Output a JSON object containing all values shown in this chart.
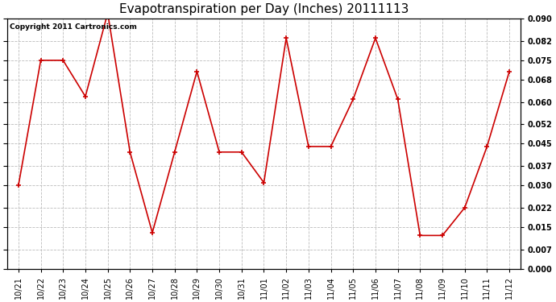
{
  "title": "Evapotranspiration per Day (Inches) 20111113",
  "copyright_text": "Copyright 2011 Cartronics.com",
  "x_labels": [
    "10/21",
    "10/22",
    "10/23",
    "10/24",
    "10/25",
    "10/26",
    "10/27",
    "10/28",
    "10/29",
    "10/30",
    "10/31",
    "11/01",
    "11/02",
    "11/03",
    "11/04",
    "11/05",
    "11/06",
    "11/07",
    "11/08",
    "11/09",
    "11/10",
    "11/11",
    "11/12"
  ],
  "y_values": [
    0.03,
    0.075,
    0.075,
    0.062,
    0.092,
    0.042,
    0.013,
    0.042,
    0.071,
    0.042,
    0.042,
    0.031,
    0.083,
    0.044,
    0.044,
    0.061,
    0.083,
    0.061,
    0.012,
    0.012,
    0.022,
    0.044,
    0.071
  ],
  "line_color": "#cc0000",
  "marker": "+",
  "marker_size": 5,
  "marker_color": "#cc0000",
  "background_color": "#ffffff",
  "plot_bg_color": "#ffffff",
  "grid_color": "#bbbbbb",
  "ylim": [
    0.0,
    0.09
  ],
  "yticks": [
    0.0,
    0.007,
    0.015,
    0.022,
    0.03,
    0.037,
    0.045,
    0.052,
    0.06,
    0.068,
    0.075,
    0.082,
    0.09
  ],
  "title_fontsize": 11,
  "copyright_fontsize": 6.5,
  "tick_fontsize": 7,
  "ylabel_fontweight": "bold"
}
